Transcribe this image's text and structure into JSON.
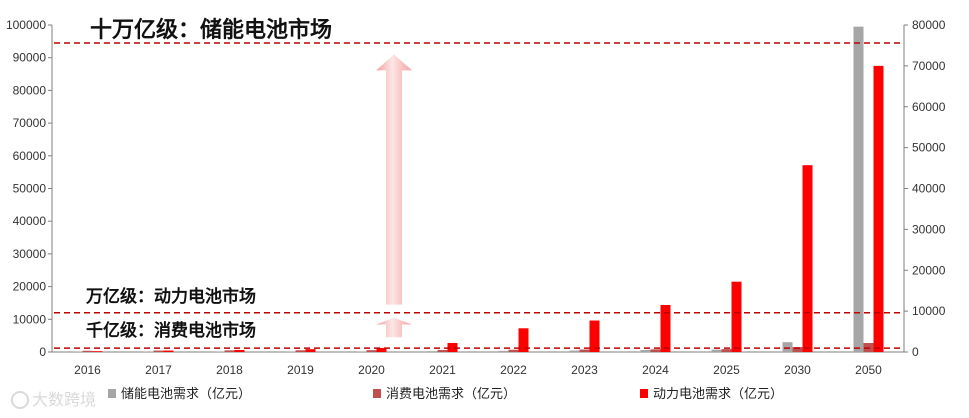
{
  "chart_data": {
    "type": "bar",
    "categories": [
      "2016",
      "2017",
      "2018",
      "2019",
      "2020",
      "2021",
      "2022",
      "2023",
      "2024",
      "2025",
      "2030",
      "2050"
    ],
    "series": [
      {
        "name": "储能电池需求（亿元）",
        "axis": "left",
        "color": "#a6a6a6",
        "values": [
          25,
          35,
          55,
          80,
          110,
          250,
          350,
          450,
          600,
          700,
          3000,
          99500
        ]
      },
      {
        "name": "消费电池需求（亿元）",
        "axis": "right",
        "color": "#c0504d",
        "values": [
          300,
          350,
          400,
          420,
          450,
          500,
          550,
          600,
          650,
          700,
          1200,
          2200
        ]
      },
      {
        "name": "动力电池需求（亿元）",
        "axis": "right",
        "color": "#ff0000",
        "values": [
          200,
          350,
          500,
          700,
          1000,
          2200,
          5800,
          7700,
          11500,
          17200,
          45700,
          70000
        ]
      }
    ],
    "y_left": {
      "min": 0,
      "max": 100000,
      "ticks": [
        "0",
        "10000",
        "20000",
        "30000",
        "40000",
        "50000",
        "60000",
        "70000",
        "80000",
        "90000",
        "100000"
      ]
    },
    "y_right": {
      "min": 0,
      "max": 80000,
      "ticks": [
        "0",
        "10000",
        "20000",
        "30000",
        "40000",
        "50000",
        "60000",
        "70000",
        "80000"
      ]
    },
    "reference_lines": [
      {
        "label": "十万亿级：储能电池市场",
        "value": 94500,
        "axis": "left"
      },
      {
        "label": "万亿级：动力电池市场",
        "value": 12000,
        "axis": "left"
      },
      {
        "label": "千亿级：消费电池市场",
        "value": 1200,
        "axis": "left"
      }
    ],
    "arrows": [
      {
        "from": 14500,
        "to": 91000,
        "axis": "left"
      },
      {
        "from": 4500,
        "to": 10500,
        "axis": "left"
      }
    ],
    "legend_position": "bottom",
    "grid": false
  },
  "watermark": "大数跨境"
}
